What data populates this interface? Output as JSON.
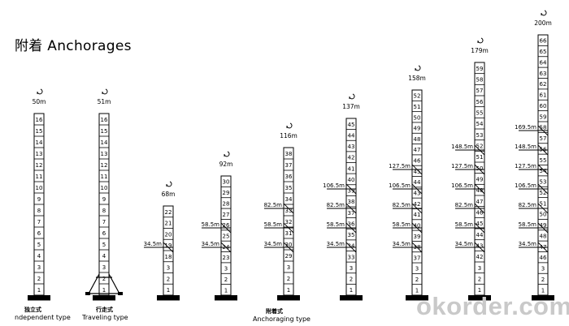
{
  "title": "附着 Anchorages",
  "watermark": "okorder.com",
  "captions": [
    {
      "cn": "独立式",
      "en": "ndependent type"
    },
    {
      "cn": "行走式",
      "en": "Traveling type"
    },
    {
      "cn": "附着式",
      "en": "Anchoraging type"
    }
  ],
  "cranes": [
    {
      "height": "50m",
      "sections": 16,
      "anchors": [],
      "type": "independent"
    },
    {
      "height": "51m",
      "sections": 16,
      "anchors": [],
      "type": "traveling"
    },
    {
      "height": "68m",
      "sections": 22,
      "anchors": [
        "34.5m"
      ],
      "type": "anchoraging"
    },
    {
      "height": "92m",
      "sections": 30,
      "anchors": [
        "34.5m",
        "58.5m"
      ],
      "type": "anchoraging"
    },
    {
      "height": "116m",
      "sections": 38,
      "anchors": [
        "34.5m",
        "58.5m",
        "82.5m"
      ],
      "type": "anchoraging"
    },
    {
      "height": "137m",
      "sections": 45,
      "anchors": [
        "34.5m",
        "58.5m",
        "82.5m",
        "106.5m"
      ],
      "type": "anchoraging"
    },
    {
      "height": "158m",
      "sections": 52,
      "anchors": [
        "34.5m",
        "58.5m",
        "82.5m",
        "106.5m",
        "127.5m"
      ],
      "type": "anchoraging"
    },
    {
      "height": "179m",
      "sections": 59,
      "anchors": [
        "34.5m",
        "58.5m",
        "82.5m",
        "106.5m",
        "127.5m",
        "148.5m"
      ],
      "type": "anchoraging"
    },
    {
      "height": "200m",
      "sections": 66,
      "anchors": [
        "34.5m",
        "58.5m",
        "82.5m",
        "106.5m",
        "127.5m",
        "148.5m",
        "169.5m"
      ],
      "type": "anchoraging"
    }
  ]
}
